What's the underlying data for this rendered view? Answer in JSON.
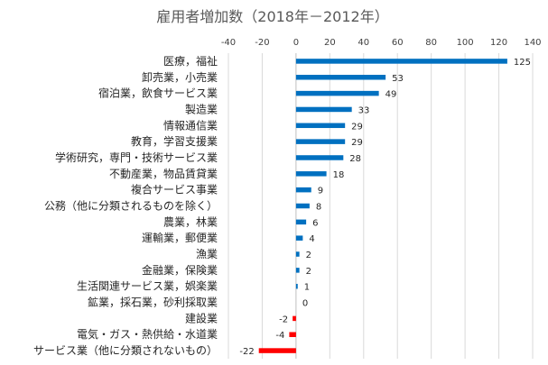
{
  "chart_data": {
    "type": "bar",
    "orientation": "horizontal",
    "title": "雇用者増加数（2018年－2012年）",
    "xlabel": "",
    "ylabel": "",
    "xlim": [
      -40,
      140
    ],
    "xticks": [
      -40,
      -20,
      0,
      20,
      40,
      60,
      80,
      100,
      120,
      140
    ],
    "grid": true,
    "colors": {
      "positive": "#0070c0",
      "negative": "#ff0000"
    },
    "categories": [
      "医療，福祉",
      "卸売業，小売業",
      "宿泊業，飲食サービス業",
      "製造業",
      "情報通信業",
      "教育，学習支援業",
      "学術研究，専門・技術サービス業",
      "不動産業，物品賃貸業",
      "複合サービス事業",
      "公務（他に分類されるものを除く）",
      "農業，林業",
      "運輸業，郵便業",
      "漁業",
      "金融業，保険業",
      "生活関連サービス業，娯楽業",
      "鉱業，採石業，砂利採取業",
      "建設業",
      "電気・ガス・熱供給・水道業",
      "サービス業（他に分類されないもの）"
    ],
    "values": [
      125,
      53,
      49,
      33,
      29,
      29,
      28,
      18,
      9,
      8,
      6,
      4,
      2,
      2,
      1,
      0,
      -2,
      -4,
      -22
    ]
  }
}
